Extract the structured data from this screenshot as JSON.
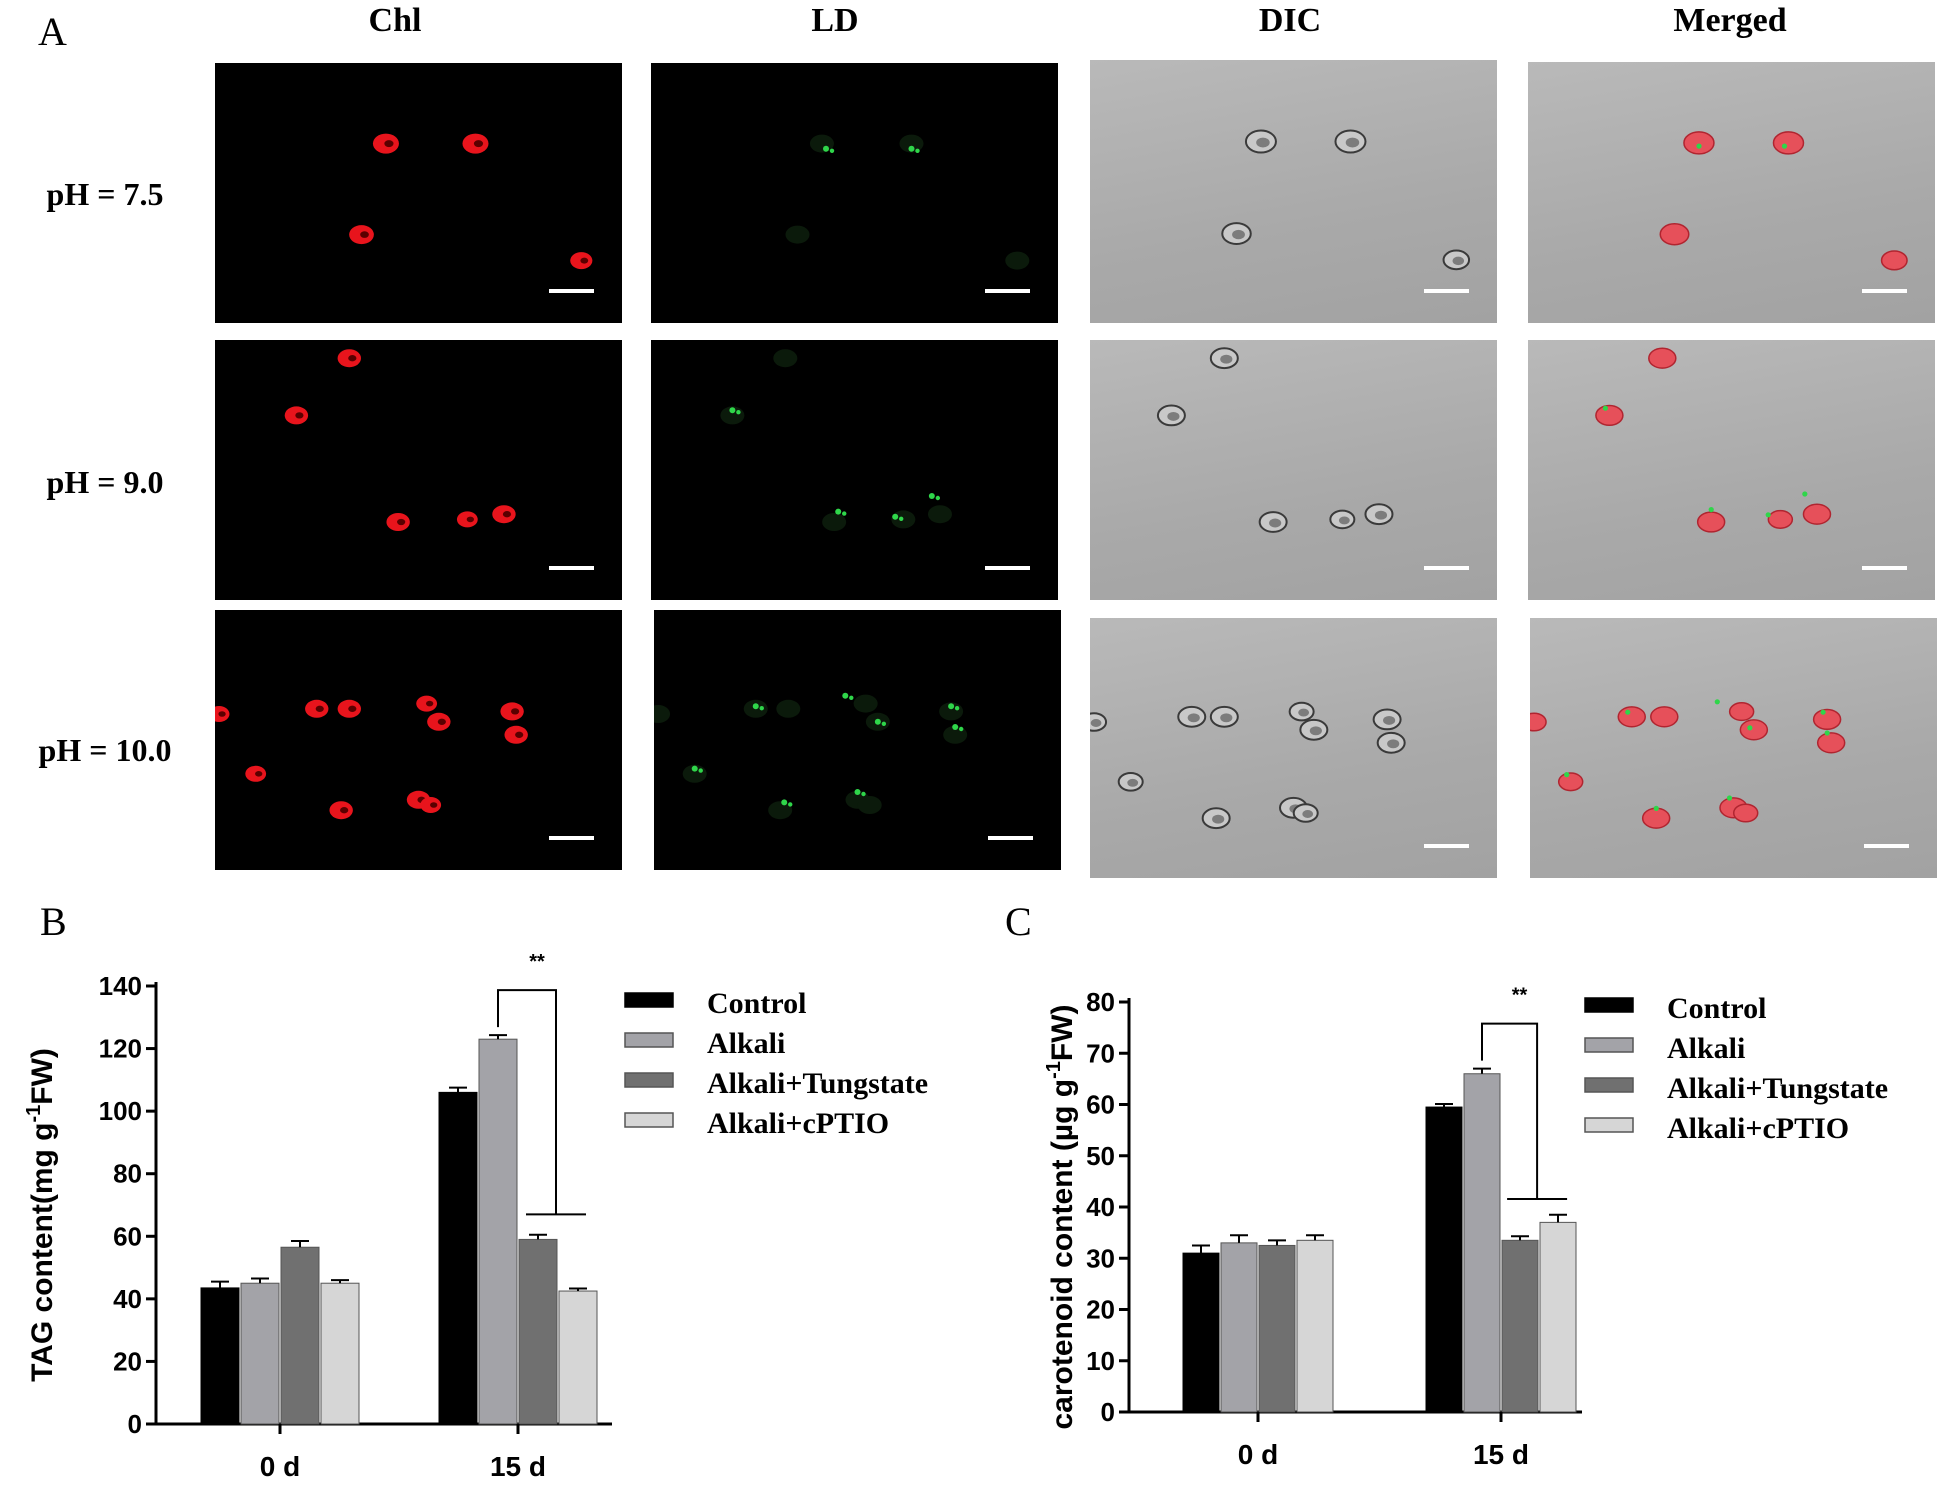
{
  "panel_a": {
    "letter": "A",
    "columns": [
      "Chl",
      "LD",
      "DIC",
      "Merged"
    ],
    "rows": [
      "pH = 7.5",
      "pH = 9.0",
      "pH = 10.0"
    ]
  },
  "panel_b": {
    "letter": "B"
  },
  "panel_c": {
    "letter": "C"
  },
  "colors": {
    "control": "#000000",
    "alkali": "#a3a3a8",
    "alkali_tungstate": "#707070",
    "alkali_cptio": "#d6d6d6",
    "chl": "#e8141c",
    "ld": "#2fd64a"
  },
  "chart_data": [
    {
      "type": "bar",
      "panel": "B",
      "ylabel": "TAG content(mg g-1FW)",
      "ylabel_parts": {
        "pre": "TAG content(mg g",
        "sup": "-1",
        "post": "FW)"
      },
      "categories": [
        "0 d",
        "15 d"
      ],
      "ylim": [
        0,
        140
      ],
      "yticks": [
        0,
        20,
        40,
        60,
        80,
        100,
        120,
        140
      ],
      "series": [
        {
          "name": "Control",
          "values": [
            43.5,
            106
          ],
          "errors": [
            2,
            1.5
          ]
        },
        {
          "name": "Alkali",
          "values": [
            45,
            123
          ],
          "errors": [
            1.5,
            1.3
          ]
        },
        {
          "name": "Alkali+Tungstate",
          "values": [
            56.5,
            59
          ],
          "errors": [
            2,
            1.5
          ]
        },
        {
          "name": "Alkali+cPTIO",
          "values": [
            45,
            42.5
          ],
          "errors": [
            1,
            0.8
          ]
        }
      ],
      "annotation": "**",
      "legend_position": "top-right"
    },
    {
      "type": "bar",
      "panel": "C",
      "ylabel": "carotenoid content (µg g-1FW)",
      "ylabel_parts": {
        "pre": "carotenoid content (µg g",
        "sup": "-1",
        "post": "FW)"
      },
      "categories": [
        "0 d",
        "15 d"
      ],
      "ylim": [
        0,
        80
      ],
      "yticks": [
        0,
        10,
        20,
        30,
        40,
        50,
        60,
        70,
        80
      ],
      "series": [
        {
          "name": "Control",
          "values": [
            31,
            59.5
          ],
          "errors": [
            1.5,
            0.6
          ]
        },
        {
          "name": "Alkali",
          "values": [
            33,
            66
          ],
          "errors": [
            1.5,
            1
          ]
        },
        {
          "name": "Alkali+Tungstate",
          "values": [
            32.5,
            33.5
          ],
          "errors": [
            1,
            0.8
          ]
        },
        {
          "name": "Alkali+cPTIO",
          "values": [
            33.5,
            37
          ],
          "errors": [
            1,
            1.5
          ]
        }
      ],
      "annotation": "**",
      "legend_position": "top-right"
    }
  ]
}
